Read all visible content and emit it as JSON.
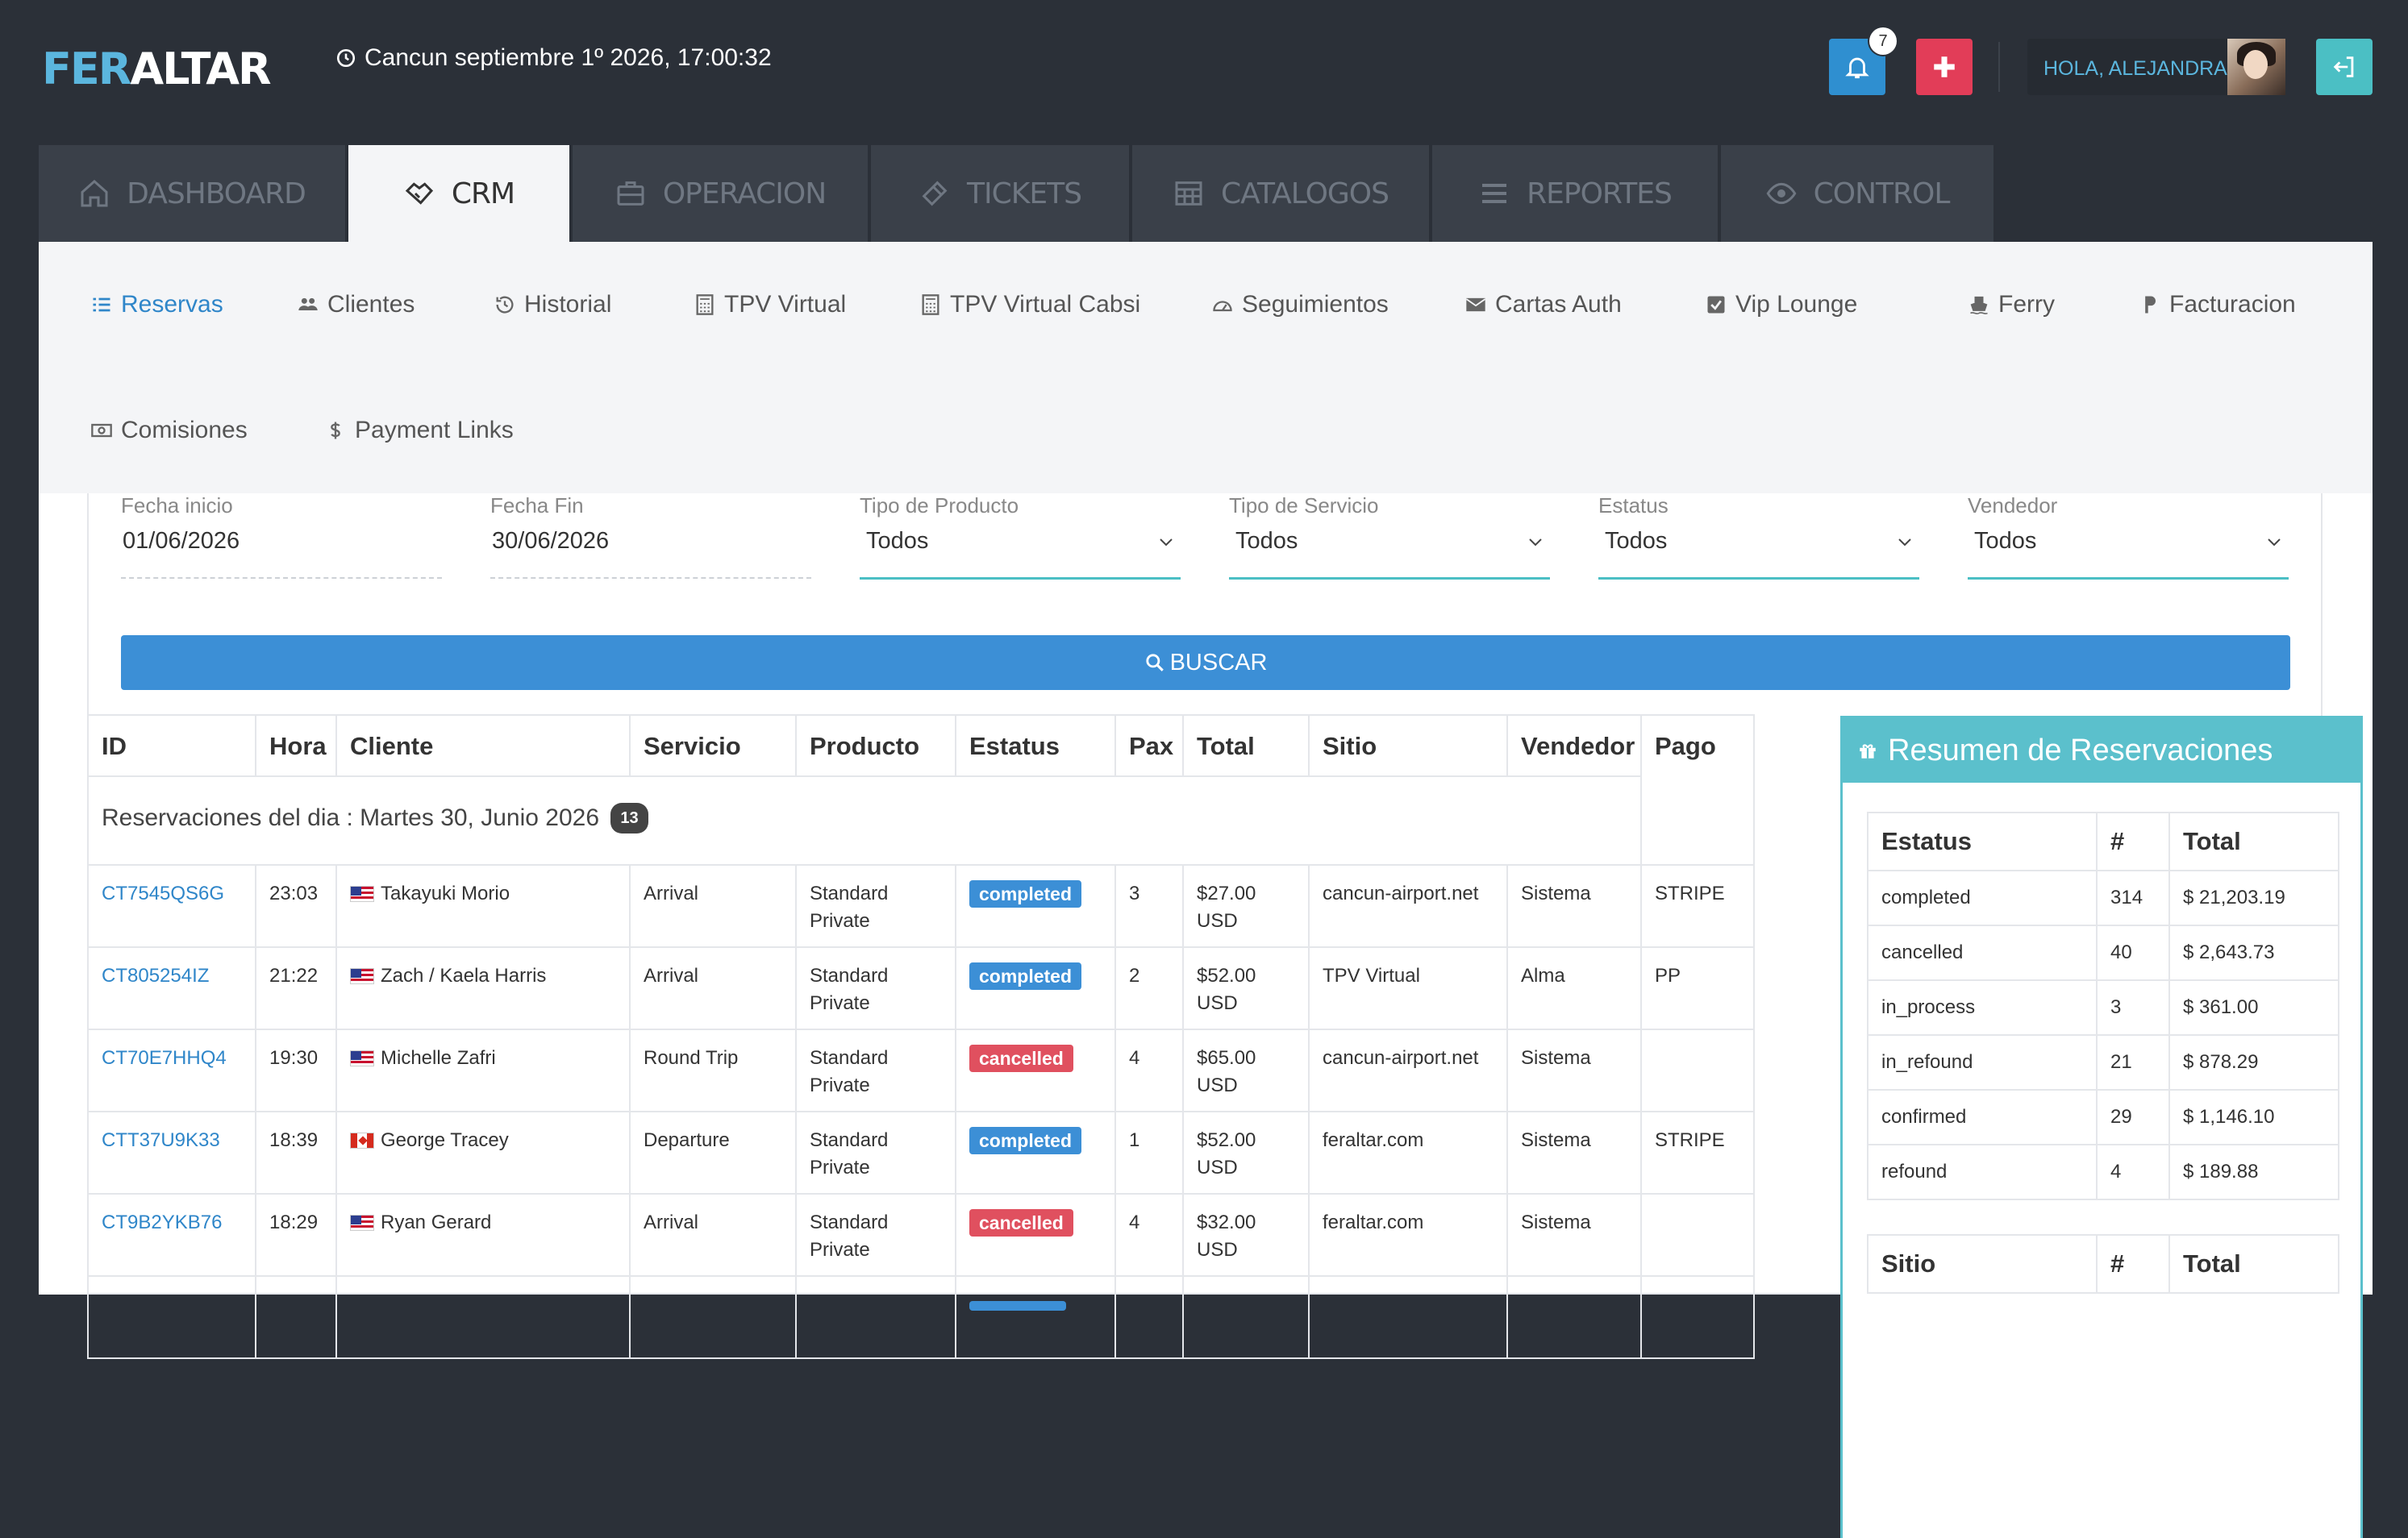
{
  "app": {
    "logo_part1": "FER",
    "logo_part2": "ALTAR",
    "clock_text": "Cancun septiembre 1º 2026, 17:00:32",
    "notifications_count": "7",
    "greeting": "HOLA, ALEJANDRA"
  },
  "main_tabs": [
    {
      "label": "DASHBOARD",
      "icon": "home-icon",
      "active": false
    },
    {
      "label": "CRM",
      "icon": "handshake-icon",
      "active": true
    },
    {
      "label": "OPERACION",
      "icon": "briefcase-icon",
      "active": false
    },
    {
      "label": "TICKETS",
      "icon": "ticket-icon",
      "active": false
    },
    {
      "label": "CATALOGOS",
      "icon": "table-icon",
      "active": false
    },
    {
      "label": "REPORTES",
      "icon": "bars-icon",
      "active": false
    },
    {
      "label": "CONTROL",
      "icon": "eye-icon",
      "active": false
    }
  ],
  "sub_nav": [
    {
      "label": "Reservas",
      "icon": "list-icon",
      "active": true
    },
    {
      "label": "Clientes",
      "icon": "users-icon"
    },
    {
      "label": "Historial",
      "icon": "history-icon"
    },
    {
      "label": "TPV Virtual",
      "icon": "calculator-icon"
    },
    {
      "label": "TPV Virtual Cabsi",
      "icon": "calculator-icon"
    },
    {
      "label": "Seguimientos",
      "icon": "tachometer-icon"
    },
    {
      "label": "Cartas Auth",
      "icon": "envelope-icon"
    },
    {
      "label": "Vip Lounge",
      "icon": "check-square-icon"
    },
    {
      "label": "Ferry",
      "icon": "ship-icon"
    },
    {
      "label": "Facturacion",
      "icon": "parking-icon"
    },
    {
      "label": "Comisiones",
      "icon": "money-icon"
    },
    {
      "label": "Payment Links",
      "icon": "dollar-icon"
    }
  ],
  "filters": {
    "fecha_inicio": {
      "label": "Fecha inicio",
      "value": "01/06/2026"
    },
    "fecha_fin": {
      "label": "Fecha Fin",
      "value": "30/06/2026"
    },
    "tipo_producto": {
      "label": "Tipo de Producto",
      "value": "Todos"
    },
    "tipo_servicio": {
      "label": "Tipo de Servicio",
      "value": "Todos"
    },
    "estatus": {
      "label": "Estatus",
      "value": "Todos"
    },
    "vendedor": {
      "label": "Vendedor",
      "value": "Todos"
    },
    "search_label": "BUSCAR"
  },
  "table": {
    "headers": [
      "ID",
      "Hora",
      "Cliente",
      "Servicio",
      "Producto",
      "Estatus",
      "Pax",
      "Total",
      "Sitio",
      "Vendedor",
      "Pago"
    ],
    "day_label": "Reservaciones del dia : Martes 30, Junio 2026",
    "day_count": "13",
    "rows": [
      {
        "id": "CT7545QS6G",
        "hora": "23:03",
        "flag": "us",
        "cliente": "Takayuki Morio",
        "servicio": "Arrival",
        "producto": "Standard Private",
        "estatus": "completed",
        "pax": "3",
        "total": "$27.00 USD",
        "sitio": "cancun-airport.net",
        "vendedor": "Sistema",
        "pago": "STRIPE"
      },
      {
        "id": "CT805254IZ",
        "hora": "21:22",
        "flag": "us",
        "cliente": "Zach / Kaela Harris",
        "servicio": "Arrival",
        "producto": "Standard Private",
        "estatus": "completed",
        "pax": "2",
        "total": "$52.00 USD",
        "sitio": "TPV Virtual",
        "vendedor": "Alma",
        "pago": "PP"
      },
      {
        "id": "CT70E7HHQ4",
        "hora": "19:30",
        "flag": "us",
        "cliente": "Michelle Zafri",
        "servicio": "Round Trip",
        "producto": "Standard Private",
        "estatus": "cancelled",
        "pax": "4",
        "total": "$65.00 USD",
        "sitio": "cancun-airport.net",
        "vendedor": "Sistema",
        "pago": ""
      },
      {
        "id": "CTT37U9K33",
        "hora": "18:39",
        "flag": "ca",
        "cliente": "George Tracey",
        "servicio": "Departure",
        "producto": "Standard Private",
        "estatus": "completed",
        "pax": "1",
        "total": "$52.00 USD",
        "sitio": "feraltar.com",
        "vendedor": "Sistema",
        "pago": "STRIPE"
      },
      {
        "id": "CT9B2YKB76",
        "hora": "18:29",
        "flag": "us",
        "cliente": "Ryan Gerard",
        "servicio": "Arrival",
        "producto": "Standard Private",
        "estatus": "cancelled",
        "pax": "4",
        "total": "$32.00 USD",
        "sitio": "feraltar.com",
        "vendedor": "Sistema",
        "pago": ""
      }
    ]
  },
  "summary": {
    "title": "Resumen de Reservaciones",
    "status_headers": [
      "Estatus",
      "#",
      "Total"
    ],
    "status_rows": [
      {
        "status": "completed",
        "count": "314",
        "total": "$ 21,203.19"
      },
      {
        "status": "cancelled",
        "count": "40",
        "total": "$ 2,643.73"
      },
      {
        "status": "in_process",
        "count": "3",
        "total": "$ 361.00"
      },
      {
        "status": "in_refound",
        "count": "21",
        "total": "$ 878.29"
      },
      {
        "status": "confirmed",
        "count": "29",
        "total": "$ 1,146.10"
      },
      {
        "status": "refound",
        "count": "4",
        "total": "$ 189.88"
      }
    ],
    "site_headers": [
      "Sitio",
      "#",
      "Total"
    ]
  },
  "colors": {
    "header_bg": "#2b3038",
    "accent_blue": "#3c8fd6",
    "accent_teal": "#5bc0cc",
    "danger": "#e0505f",
    "brand_blue": "#5bb6de"
  }
}
